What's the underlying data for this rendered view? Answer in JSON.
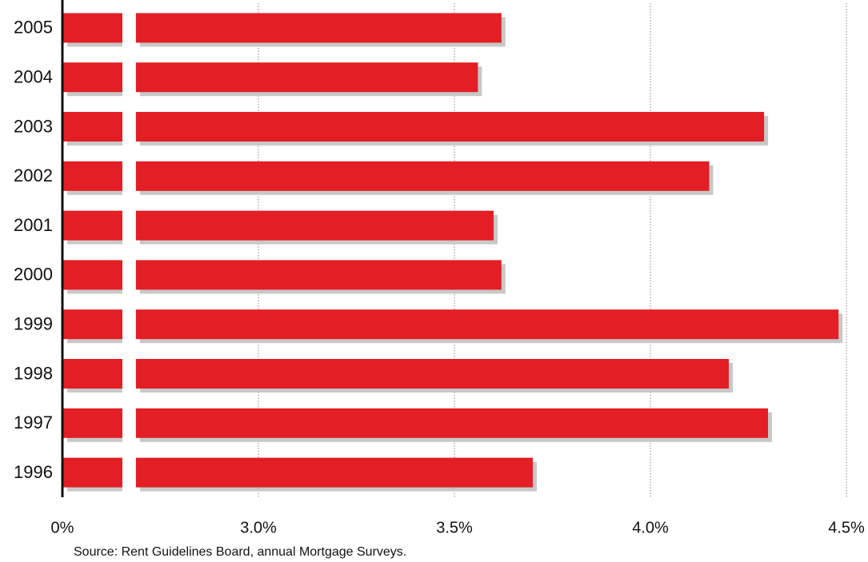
{
  "chart_data": {
    "type": "bar",
    "orientation": "horizontal",
    "categories": [
      "2005",
      "2004",
      "2003",
      "2002",
      "2001",
      "2000",
      "1999",
      "1998",
      "1997",
      "1996"
    ],
    "values": [
      3.62,
      3.56,
      4.29,
      4.15,
      3.6,
      3.62,
      4.48,
      4.2,
      4.3,
      3.7
    ],
    "color": "#e31e24",
    "shadow_color": "#c8c8c8",
    "xlim": [
      0,
      4.5
    ],
    "xticks": [
      {
        "value": 0,
        "label": "0%"
      },
      {
        "value": 3,
        "label": "3.0%"
      },
      {
        "value": 3.5,
        "label": "3.5%"
      },
      {
        "value": 4,
        "label": "4.0%"
      },
      {
        "value": 4.5,
        "label": "4.5%"
      }
    ],
    "axis_break": true,
    "grid": true,
    "source": "Source: Rent Guidelines Board, annual Mortgage Surveys."
  }
}
